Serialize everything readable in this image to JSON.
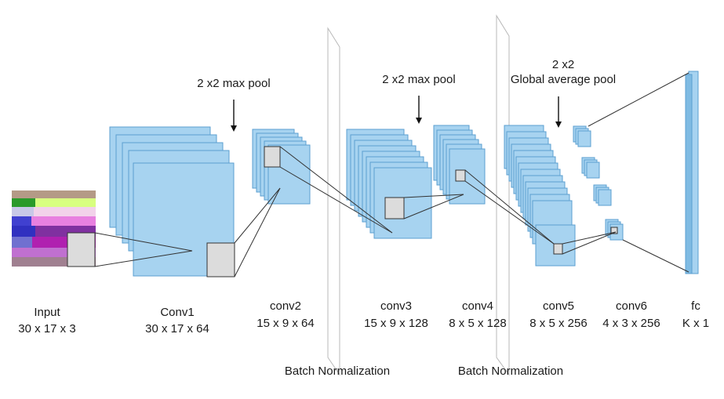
{
  "layers": [
    {
      "name": "Input",
      "dims": "30 x 17 x 3"
    },
    {
      "name": "Conv1",
      "dims": "30 x 17 x 64"
    },
    {
      "name": "conv2",
      "dims": "15 x 9 x 64"
    },
    {
      "name": "conv3",
      "dims": "15 x 9 x 128"
    },
    {
      "name": "conv4",
      "dims": "8 x 5 x 128"
    },
    {
      "name": "conv5",
      "dims": "8 x 5 x 256"
    },
    {
      "name": "conv6",
      "dims": "4 x 3 x 256"
    },
    {
      "name": "fc",
      "dims": "K x 1"
    }
  ],
  "annotations": {
    "pool1": "2 x2 max pool",
    "pool2": "2 x2 max pool",
    "pool3_line1": "2 x2",
    "pool3_line2": "Global average pool",
    "bn1": "Batch Normalization",
    "bn2": "Batch Normalization"
  },
  "colors": {
    "feature_map": "#a7d3f0",
    "feature_map_border": "#5b9fd0",
    "kernel": "#dcdcdc"
  }
}
